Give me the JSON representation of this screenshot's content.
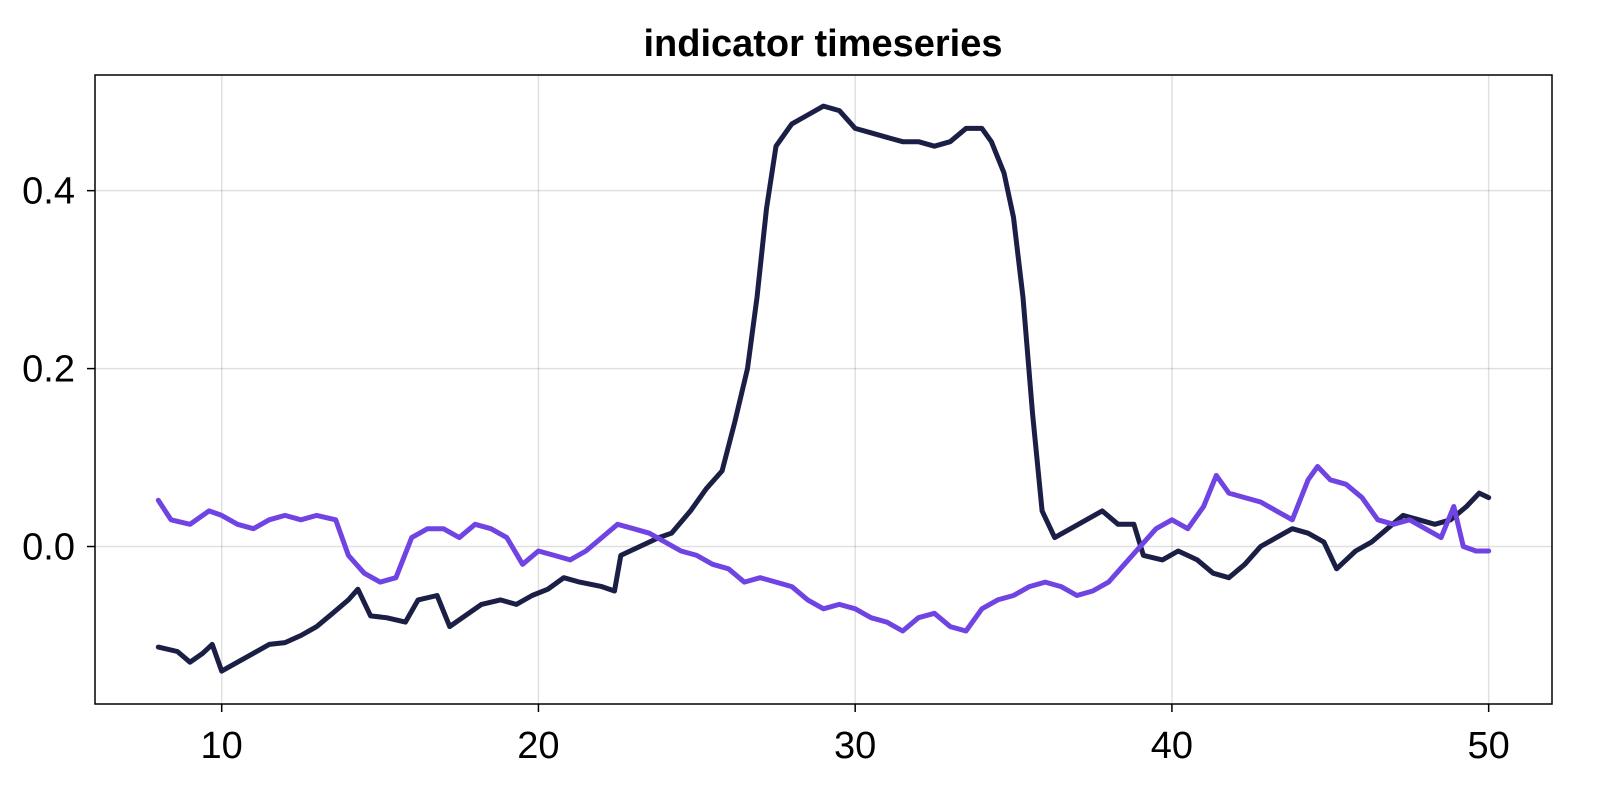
{
  "chart_data": {
    "type": "line",
    "title": "indicator timeseries",
    "xlabel": "",
    "ylabel": "",
    "xlim": [
      6,
      52
    ],
    "ylim": [
      -0.177,
      0.53
    ],
    "xticks": [
      10,
      20,
      30,
      40,
      50
    ],
    "xtick_labels": [
      "10",
      "20",
      "30",
      "40",
      "50"
    ],
    "yticks": [
      0.0,
      0.2,
      0.4
    ],
    "ytick_labels": [
      "0.0",
      "0.2",
      "0.4"
    ],
    "grid": true,
    "legend": "none",
    "series": [
      {
        "color": "#1b1f45",
        "points": [
          [
            8.0,
            -0.113
          ],
          [
            8.6,
            -0.118
          ],
          [
            9.0,
            -0.13
          ],
          [
            9.4,
            -0.12
          ],
          [
            9.7,
            -0.11
          ],
          [
            10.0,
            -0.14
          ],
          [
            10.5,
            -0.13
          ],
          [
            11.0,
            -0.12
          ],
          [
            11.5,
            -0.11
          ],
          [
            12.0,
            -0.108
          ],
          [
            12.5,
            -0.1
          ],
          [
            13.0,
            -0.09
          ],
          [
            13.5,
            -0.075
          ],
          [
            14.0,
            -0.06
          ],
          [
            14.3,
            -0.048
          ],
          [
            14.7,
            -0.078
          ],
          [
            15.2,
            -0.08
          ],
          [
            15.8,
            -0.085
          ],
          [
            16.2,
            -0.06
          ],
          [
            16.8,
            -0.055
          ],
          [
            17.2,
            -0.09
          ],
          [
            17.6,
            -0.08
          ],
          [
            18.2,
            -0.065
          ],
          [
            18.8,
            -0.06
          ],
          [
            19.3,
            -0.065
          ],
          [
            19.8,
            -0.055
          ],
          [
            20.3,
            -0.048
          ],
          [
            20.8,
            -0.035
          ],
          [
            21.3,
            -0.04
          ],
          [
            22.0,
            -0.045
          ],
          [
            22.4,
            -0.05
          ],
          [
            22.6,
            -0.01
          ],
          [
            23.2,
            0.0
          ],
          [
            23.8,
            0.01
          ],
          [
            24.2,
            0.015
          ],
          [
            24.8,
            0.04
          ],
          [
            25.3,
            0.065
          ],
          [
            25.8,
            0.085
          ],
          [
            26.2,
            0.14
          ],
          [
            26.6,
            0.2
          ],
          [
            26.9,
            0.28
          ],
          [
            27.2,
            0.38
          ],
          [
            27.5,
            0.45
          ],
          [
            28.0,
            0.475
          ],
          [
            28.5,
            0.485
          ],
          [
            29.0,
            0.495
          ],
          [
            29.5,
            0.49
          ],
          [
            30.0,
            0.47
          ],
          [
            30.5,
            0.465
          ],
          [
            31.0,
            0.46
          ],
          [
            31.5,
            0.455
          ],
          [
            32.0,
            0.455
          ],
          [
            32.5,
            0.45
          ],
          [
            33.0,
            0.455
          ],
          [
            33.5,
            0.47
          ],
          [
            34.0,
            0.47
          ],
          [
            34.3,
            0.455
          ],
          [
            34.7,
            0.42
          ],
          [
            35.0,
            0.37
          ],
          [
            35.3,
            0.28
          ],
          [
            35.6,
            0.15
          ],
          [
            35.9,
            0.04
          ],
          [
            36.3,
            0.01
          ],
          [
            36.8,
            0.02
          ],
          [
            37.3,
            0.03
          ],
          [
            37.8,
            0.04
          ],
          [
            38.3,
            0.025
          ],
          [
            38.8,
            0.025
          ],
          [
            39.1,
            -0.01
          ],
          [
            39.7,
            -0.015
          ],
          [
            40.2,
            -0.005
          ],
          [
            40.8,
            -0.015
          ],
          [
            41.3,
            -0.03
          ],
          [
            41.8,
            -0.035
          ],
          [
            42.3,
            -0.02
          ],
          [
            42.8,
            0.0
          ],
          [
            43.3,
            0.01
          ],
          [
            43.8,
            0.02
          ],
          [
            44.3,
            0.015
          ],
          [
            44.8,
            0.005
          ],
          [
            45.2,
            -0.025
          ],
          [
            45.8,
            -0.005
          ],
          [
            46.3,
            0.005
          ],
          [
            46.8,
            0.02
          ],
          [
            47.3,
            0.035
          ],
          [
            47.8,
            0.03
          ],
          [
            48.3,
            0.025
          ],
          [
            48.8,
            0.03
          ],
          [
            49.3,
            0.045
          ],
          [
            49.7,
            0.06
          ],
          [
            50.0,
            0.055
          ]
        ]
      },
      {
        "color": "#7044e3",
        "points": [
          [
            8.0,
            0.052
          ],
          [
            8.4,
            0.03
          ],
          [
            9.0,
            0.025
          ],
          [
            9.6,
            0.04
          ],
          [
            10.0,
            0.035
          ],
          [
            10.5,
            0.025
          ],
          [
            11.0,
            0.02
          ],
          [
            11.5,
            0.03
          ],
          [
            12.0,
            0.035
          ],
          [
            12.5,
            0.03
          ],
          [
            13.0,
            0.035
          ],
          [
            13.6,
            0.03
          ],
          [
            14.0,
            -0.01
          ],
          [
            14.5,
            -0.03
          ],
          [
            15.0,
            -0.04
          ],
          [
            15.5,
            -0.035
          ],
          [
            16.0,
            0.01
          ],
          [
            16.5,
            0.02
          ],
          [
            17.0,
            0.02
          ],
          [
            17.5,
            0.01
          ],
          [
            18.0,
            0.025
          ],
          [
            18.5,
            0.02
          ],
          [
            19.0,
            0.01
          ],
          [
            19.5,
            -0.02
          ],
          [
            20.0,
            -0.005
          ],
          [
            20.5,
            -0.01
          ],
          [
            21.0,
            -0.015
          ],
          [
            21.5,
            -0.005
          ],
          [
            22.0,
            0.01
          ],
          [
            22.5,
            0.025
          ],
          [
            23.0,
            0.02
          ],
          [
            23.5,
            0.015
          ],
          [
            24.0,
            0.005
          ],
          [
            24.5,
            -0.005
          ],
          [
            25.0,
            -0.01
          ],
          [
            25.5,
            -0.02
          ],
          [
            26.0,
            -0.025
          ],
          [
            26.5,
            -0.04
          ],
          [
            27.0,
            -0.035
          ],
          [
            27.5,
            -0.04
          ],
          [
            28.0,
            -0.045
          ],
          [
            28.5,
            -0.06
          ],
          [
            29.0,
            -0.07
          ],
          [
            29.5,
            -0.065
          ],
          [
            30.0,
            -0.07
          ],
          [
            30.5,
            -0.08
          ],
          [
            31.0,
            -0.085
          ],
          [
            31.5,
            -0.095
          ],
          [
            32.0,
            -0.08
          ],
          [
            32.5,
            -0.075
          ],
          [
            33.0,
            -0.09
          ],
          [
            33.5,
            -0.095
          ],
          [
            34.0,
            -0.07
          ],
          [
            34.5,
            -0.06
          ],
          [
            35.0,
            -0.055
          ],
          [
            35.5,
            -0.045
          ],
          [
            36.0,
            -0.04
          ],
          [
            36.5,
            -0.045
          ],
          [
            37.0,
            -0.055
          ],
          [
            37.5,
            -0.05
          ],
          [
            38.0,
            -0.04
          ],
          [
            38.5,
            -0.02
          ],
          [
            39.0,
            0.0
          ],
          [
            39.5,
            0.02
          ],
          [
            40.0,
            0.03
          ],
          [
            40.5,
            0.02
          ],
          [
            41.0,
            0.045
          ],
          [
            41.4,
            0.08
          ],
          [
            41.8,
            0.06
          ],
          [
            42.3,
            0.055
          ],
          [
            42.8,
            0.05
          ],
          [
            43.3,
            0.04
          ],
          [
            43.8,
            0.03
          ],
          [
            44.3,
            0.075
          ],
          [
            44.6,
            0.09
          ],
          [
            45.0,
            0.075
          ],
          [
            45.5,
            0.07
          ],
          [
            46.0,
            0.055
          ],
          [
            46.5,
            0.03
          ],
          [
            47.0,
            0.025
          ],
          [
            47.5,
            0.03
          ],
          [
            48.0,
            0.02
          ],
          [
            48.5,
            0.01
          ],
          [
            48.9,
            0.045
          ],
          [
            49.2,
            0.0
          ],
          [
            49.6,
            -0.005
          ],
          [
            50.0,
            -0.005
          ]
        ]
      }
    ]
  }
}
